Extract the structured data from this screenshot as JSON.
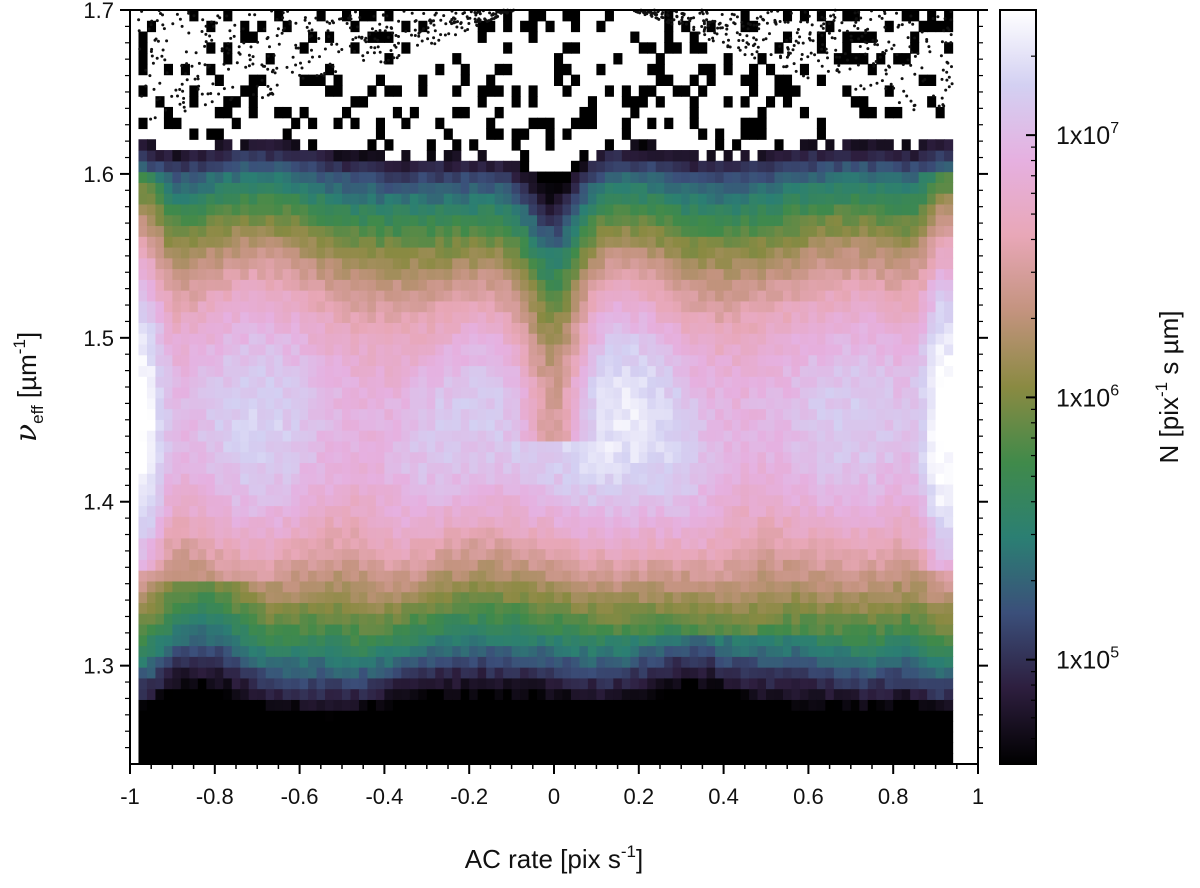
{
  "chart_data": {
    "type": "heatmap",
    "title": "",
    "xlabel": {
      "text": "AC rate [pix s",
      "sup": "-1",
      "suffix": "]"
    },
    "ylabel": {
      "symbol": "ν",
      "sub": "eff",
      "text": " [µm",
      "sup": "-1",
      "suffix": "]"
    },
    "xlim": [
      -1,
      1
    ],
    "ylim": [
      1.24,
      1.7
    ],
    "x_ticks": [
      -1,
      -0.8,
      -0.6,
      -0.4,
      -0.2,
      0,
      0.2,
      0.4,
      0.6,
      0.8,
      1
    ],
    "x_tick_labels": [
      "-1",
      "-0.8",
      "-0.6",
      "-0.4",
      "-0.2",
      "0",
      "0.2",
      "0.4",
      "0.6",
      "0.8",
      "1"
    ],
    "y_ticks": [
      1.3,
      1.4,
      1.5,
      1.6,
      1.7
    ],
    "y_tick_labels": [
      "1.3",
      "1.4",
      "1.5",
      "1.6",
      "1.7"
    ],
    "data_x_range": [
      -0.98,
      0.94
    ],
    "colorbar": {
      "label": {
        "text": "N [pix",
        "sup": "-1",
        "suffix": " s µm]"
      },
      "scale": "log",
      "range": [
        40000,
        30000000
      ],
      "ticks": [
        {
          "value": 100000,
          "base": "1x10",
          "exp": "5"
        },
        {
          "value": 1000000,
          "base": "1x10",
          "exp": "6"
        },
        {
          "value": 10000000,
          "base": "1x10",
          "exp": "7"
        }
      ],
      "colormap": [
        "#000000",
        "#2d1e3e",
        "#3b4f7a",
        "#2b7f73",
        "#408a4a",
        "#8a8a42",
        "#c3937e",
        "#e8a7b7",
        "#e6b0e0",
        "#d3d0f2",
        "#ffffff"
      ]
    },
    "grid": false,
    "legend": "none",
    "sparse_region_marker": "scattered black points where density is low (upper band)"
  }
}
